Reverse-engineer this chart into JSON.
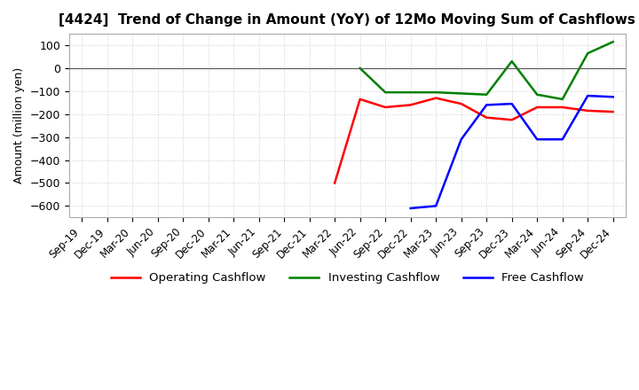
{
  "title": "[4424]  Trend of Change in Amount (YoY) of 12Mo Moving Sum of Cashflows",
  "ylabel": "Amount (million yen)",
  "ylim": [
    -650,
    150
  ],
  "yticks": [
    100,
    0,
    -100,
    -200,
    -300,
    -400,
    -500,
    -600
  ],
  "x_labels": [
    "Sep-19",
    "Dec-19",
    "Mar-20",
    "Jun-20",
    "Sep-20",
    "Dec-20",
    "Mar-21",
    "Jun-21",
    "Sep-21",
    "Dec-21",
    "Mar-22",
    "Jun-22",
    "Sep-22",
    "Dec-22",
    "Mar-23",
    "Jun-23",
    "Sep-23",
    "Dec-23",
    "Mar-24",
    "Jun-24",
    "Sep-24",
    "Dec-24"
  ],
  "operating": [
    null,
    null,
    null,
    null,
    null,
    null,
    null,
    null,
    null,
    null,
    -500,
    -135,
    -170,
    -160,
    -130,
    -155,
    -215,
    -225,
    -170,
    -170,
    -185,
    -190
  ],
  "investing": [
    null,
    null,
    null,
    null,
    null,
    null,
    null,
    null,
    null,
    null,
    null,
    0,
    -105,
    -105,
    -105,
    -110,
    -115,
    30,
    -115,
    -135,
    65,
    115
  ],
  "free": [
    null,
    null,
    null,
    null,
    null,
    null,
    null,
    null,
    null,
    null,
    null,
    null,
    null,
    -610,
    -600,
    -310,
    -160,
    -155,
    -310,
    -310,
    -120,
    -125
  ],
  "colors": {
    "operating": "#ff0000",
    "investing": "#008000",
    "free": "#0000ff"
  },
  "legend_labels": [
    "Operating Cashflow",
    "Investing Cashflow",
    "Free Cashflow"
  ],
  "background_color": "#ffffff",
  "grid_color": "#cccccc",
  "grid_minor_color": "#e0e0e0"
}
